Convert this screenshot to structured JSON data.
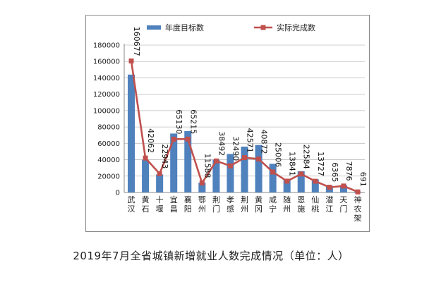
{
  "caption": "2019年7月全省城镇新增就业人数完成情况（单位：人）",
  "chart_data": {
    "type": "bar",
    "categories": [
      "武汉",
      "黄石",
      "十堰",
      "宜昌",
      "襄阳",
      "鄂州",
      "荆门",
      "孝感",
      "荆州",
      "黄冈",
      "咸宁",
      "随州",
      "恩施",
      "仙桃",
      "潜江",
      "天门",
      "神农架"
    ],
    "series": [
      {
        "name": "年度目标数",
        "type": "bar",
        "color": "#4f81bd",
        "values": [
          144000,
          40000,
          22000,
          72000,
          75000,
          12000,
          40000,
          47000,
          56000,
          58000,
          35000,
          15000,
          26000,
          16000,
          8000,
          9000,
          1000
        ]
      },
      {
        "name": "实际完成数",
        "type": "line",
        "color": "#c0504d",
        "values": [
          160677,
          42062,
          22943,
          65130,
          65215,
          11588,
          38492,
          32490,
          42571,
          40872,
          25006,
          13841,
          22584,
          13727,
          6365,
          7876,
          691
        ]
      }
    ],
    "data_labels": [
      "160677",
      "42062",
      "22943",
      "65130",
      "65215",
      "11588",
      "38492",
      "32490",
      "42571",
      "40872",
      "25006",
      "13841",
      "22584",
      "13727",
      "6365",
      "7876",
      "691"
    ],
    "yticks": [
      "0",
      "20000",
      "40000",
      "60000",
      "80000",
      "100000",
      "120000",
      "140000",
      "160000",
      "180000"
    ],
    "ylim": [
      0,
      180000
    ],
    "grid": true,
    "legend": "top"
  }
}
